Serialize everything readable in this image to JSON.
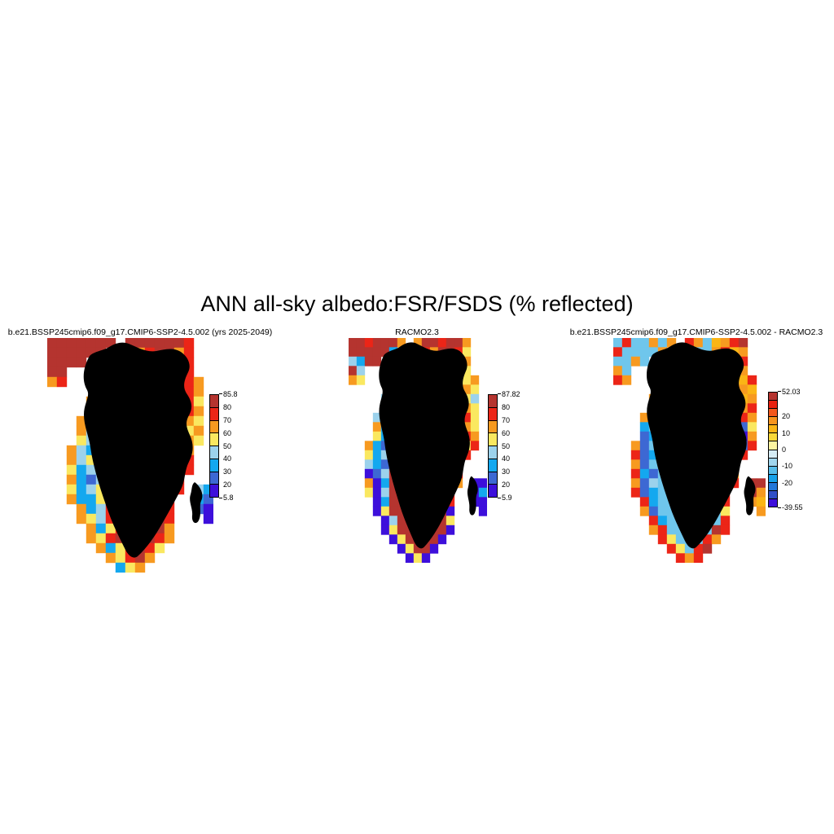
{
  "main_title": "ANN all-sky albedo:FSR/FSDS (% reflected)",
  "palette": {
    "D": "#B5342F",
    "R": "#EC2517",
    "O": "#F79A20",
    "A": "#FBB515",
    "Y": "#FAE860",
    "P": "#FCF6A8",
    "L": "#9CD2EC",
    "S": "#6FC6EC",
    "C": "#14A8EF",
    "B": "#3D68D3",
    "V": "#3D0FDB"
  },
  "chart_data": [
    {
      "type": "heatmap",
      "title": "b.e21.BSSP245cmip6.f09_g17.CMIP6-SSP2-4.5.002 (yrs 2025-2049)",
      "units": "% reflected",
      "value_range": [
        5.8,
        85.8
      ],
      "colorbar": {
        "colors": [
          "#B5342F",
          "#EC2517",
          "#F79A20",
          "#FAE860",
          "#9CD2EC",
          "#14A8EF",
          "#3D68D3",
          "#3D0FDB"
        ],
        "ticks": [
          {
            "label": "85.8",
            "pos": 0
          },
          {
            "label": "80",
            "pos": 0.125
          },
          {
            "label": "70",
            "pos": 0.25
          },
          {
            "label": "60",
            "pos": 0.375
          },
          {
            "label": "50",
            "pos": 0.5
          },
          {
            "label": "40",
            "pos": 0.625
          },
          {
            "label": "30",
            "pos": 0.75
          },
          {
            "label": "20",
            "pos": 0.875
          },
          {
            "label": "5.8",
            "pos": 1
          }
        ]
      },
      "grid_rows": [
        "DDDDDDD.DDDDDDR..",
        "DDDDDD.RRORDDOR..",
        "DDDD..RDDDDDDOR..",
        "DD...ORDDDDDDRR..",
        "OR...RRDDDDDDDRO.",
        ".....ORDDDDDDDRO.",
        "....ORDDDDDDDDRY.",
        "....ORDDDDDDDDRO.",
        "...OYRDDDDDDDROY.",
        "...OLRDDDDDDDRYO.",
        "...YLYRDDDDDDROY.",
        "..OLCYRDDDDDDRO..",
        "..OLYCRDDDDDDRR..",
        "..YCLCRDDDDDDDR..",
        "..OCBLRDDDDDDR...",
        "..YCLYRDDDDDDR.LC",
        "..OCCYRDDDDDR..CB",
        "...OCLRDDDDDR..BV",
        "...OYLRDDDDDR...V",
        "....OCYRDDDDO....",
        "....OYRDDDDRO....",
        ".....OCYRDRY.....",
        "......OYRDO......",
        ".......CYO......."
      ]
    },
    {
      "type": "heatmap",
      "title": "RACMO2.3",
      "units": "% reflected",
      "value_range": [
        5.9,
        87.82
      ],
      "colorbar": {
        "colors": [
          "#B5342F",
          "#EC2517",
          "#F79A20",
          "#FAE860",
          "#9CD2EC",
          "#14A8EF",
          "#3D68D3",
          "#3D0FDB"
        ],
        "ticks": [
          {
            "label": "87.82",
            "pos": 0
          },
          {
            "label": "80",
            "pos": 0.125
          },
          {
            "label": "70",
            "pos": 0.25
          },
          {
            "label": "60",
            "pos": 0.375
          },
          {
            "label": "50",
            "pos": 0.5
          },
          {
            "label": "40",
            "pos": 0.625
          },
          {
            "label": "30",
            "pos": 0.75
          },
          {
            "label": "20",
            "pos": 0.875
          },
          {
            "label": "5.9",
            "pos": 1
          }
        ]
      },
      "grid_rows": [
        "DDRDDDO.ODDRDDO..",
        "DDDDDC.YDRODDRY..",
        "LCDD..ODDDDDDYO..",
        "DL...YDDDDDDDOY..",
        "OY...ODDDDDDDDYO.",
        ".....ODDDDDDDDOY.",
        "....LDDDDDDDDDYL.",
        "....ODDDDDDDDDOY.",
        "...LYDDDDDDDDYRY.",
        "...OCDDDDDDDDROY.",
        "...YCDDDDDDDDYRO.",
        "..OCBDDDDDDDDOYR.",
        "..YCLDDDDDDDDOR..",
        "..LCBDDDDDDDDO...",
        "..VBLDDDDDDDDR...",
        "..OVCDDDDDDDDO.VV",
        "..YVLDDDDDDDR..VC",
        "...VCDDDDDDDR..VV",
        "...VYDDDDDDDV...V",
        "....VLDDDDDDY....",
        "....VYDDDDDDV....",
        ".....VYDDDDV.....",
        "......VYDDV......",
        ".......VYV......."
      ]
    },
    {
      "type": "heatmap",
      "title": "b.e21.BSSP245cmip6.f09_g17.CMIP6-SSP2-4.5.002 - RACMO2.3",
      "units": "% reflected difference",
      "value_range": [
        -39.55,
        52.03
      ],
      "colorbar": {
        "colors": [
          "#B5342F",
          "#E8200F",
          "#F4581C",
          "#F7941E",
          "#FBB515",
          "#F9D838",
          "#FCF4A0",
          "#D5ECF5",
          "#A0D6EE",
          "#56BCE9",
          "#16A0E8",
          "#2277D8",
          "#2F4FC7",
          "#3D0FDB"
        ],
        "ticks": [
          {
            "label": "52.03",
            "pos": 0
          },
          {
            "label": "20",
            "pos": 0.2143
          },
          {
            "label": "10",
            "pos": 0.3571
          },
          {
            "label": "0",
            "pos": 0.5
          },
          {
            "label": "-10",
            "pos": 0.6429
          },
          {
            "label": "-20",
            "pos": 0.7857
          },
          {
            "label": "-39.55",
            "pos": 1
          }
        ]
      },
      "grid_rows": [
        "SRSSOSO.ROSAORD..",
        "RSSSSO.OASSORAO..",
        "SSOS..ASSSSSOAR..",
        "OS...OSSSSSSSAO..",
        "RO...ASSSSSSSSAR.",
        ".....OSSSSSSSSOA.",
        "....OSSSSSSSSSAO.",
        "....ASSSSSSSSSOR.",
        "...OBSSSSSSSSARO.",
        "...CSSSSSSSSSRBY.",
        "...BCSSSSSSSSOVO.",
        "..OBSSSSSSSSSABR.",
        "..RBCSSSSSSSSOR..",
        "..OBSSSSSSSSSA...",
        "..RCBSSSSSSSSO...",
        "..OBLSSSSSSSSR.DD",
        "..RBCSSSSSSSR..DO",
        "...RCSSSSSSSR..OA",
        "...OBSSSSSSSY...O",
        "....RCSSSSSSR....",
        "....ORSSSSSDR....",
        ".....RYSSSRO.....",
        "......RYSRD......",
        ".......ROR......."
      ]
    }
  ]
}
